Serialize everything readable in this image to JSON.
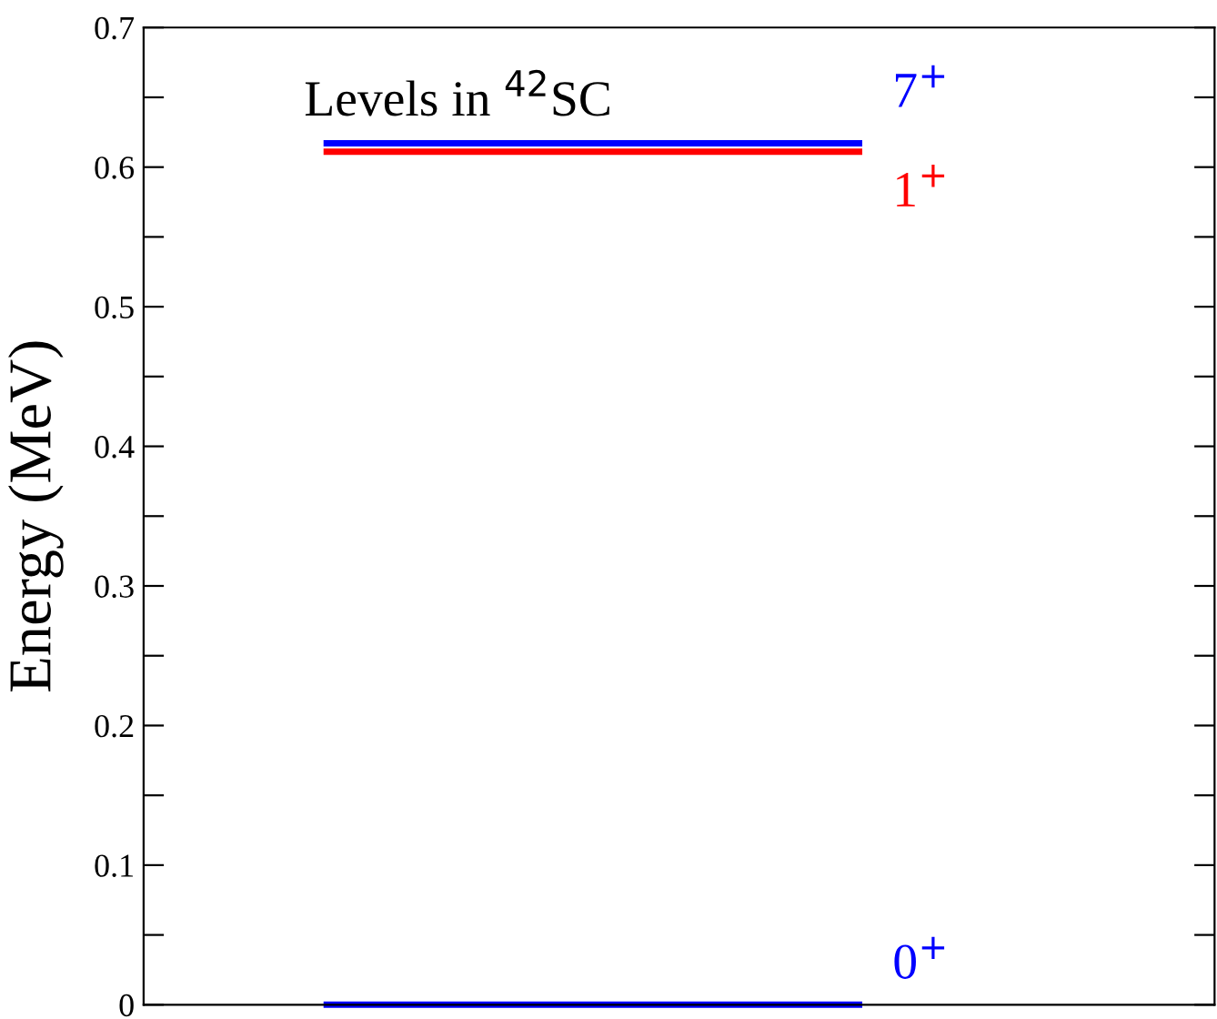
{
  "chart_data": {
    "type": "line",
    "ylabel": "Energy (MeV)",
    "annotations": [
      "Levels in $^{42}$SC"
    ],
    "categories": [
      null,
      null
    ],
    "series": [
      {
        "name": "7$^{+}$",
        "color": "#0000ff",
        "values": [
          0.617,
          0.617
        ]
      },
      {
        "name": "1$^{+}$",
        "color": "#ff0000",
        "values": [
          0.611,
          0.611
        ]
      },
      {
        "name": "0$^{+}$",
        "color": "#0000ff",
        "values": [
          0,
          0
        ]
      }
    ],
    "ylim": [
      0,
      0.7
    ],
    "yticks": [
      0,
      {
        "value": 0.05,
        "label": null
      },
      0.1,
      {
        "value": 0.15,
        "label": null
      },
      0.2,
      {
        "value": 0.25,
        "label": null
      },
      0.3,
      {
        "value": 0.35,
        "label": null
      },
      0.4,
      {
        "value": 0.45,
        "label": null
      },
      0.5,
      {
        "value": 0.55,
        "label": null
      },
      0.6,
      {
        "value": 0.65,
        "label": null
      },
      0.7
    ],
    "tick_labels": "y",
    "grid": false,
    "legend": false
  }
}
